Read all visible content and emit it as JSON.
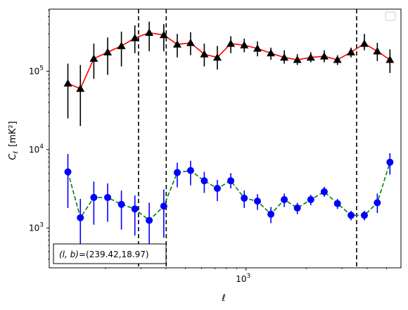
{
  "chart_data": {
    "type": "line",
    "title": "",
    "xlabel": "ℓ",
    "ylabel_main": "C",
    "ylabel_sub": "ℓ",
    "ylabel_unit": "[mK²]",
    "xscale": "log",
    "yscale": "log",
    "xlim": [
      105,
      5900
    ],
    "ylim": [
      310,
      620000
    ],
    "x_ticks": [
      {
        "value": 1000,
        "base": "10",
        "exp": "3"
      }
    ],
    "y_ticks": [
      {
        "value": 1000,
        "base": "10",
        "exp": "3"
      },
      {
        "value": 10000,
        "base": "10",
        "exp": "4"
      },
      {
        "value": 100000,
        "base": "10",
        "exp": "5"
      }
    ],
    "vlines": [
      292,
      401,
      3550
    ],
    "annotation_prefix": "(l, b)",
    "annotation_value": "=(239.42,18.97)",
    "legend": {
      "location": "upper right",
      "entries": []
    },
    "series": [
      {
        "color": "#ff0000",
        "linestyle": "solid",
        "marker": "triangle",
        "marker_color": "#000000",
        "errorbar_color": "#000000",
        "x": [
          130,
          150,
          175,
          205,
          240,
          280,
          330,
          390,
          455,
          530,
          620,
          720,
          840,
          980,
          1140,
          1330,
          1550,
          1800,
          2100,
          2450,
          2850,
          3330,
          3880,
          4500,
          5200
        ],
        "y": [
          70000,
          60000,
          145000,
          175000,
          210000,
          265000,
          310000,
          290000,
          220000,
          230000,
          165000,
          150000,
          225000,
          215000,
          195000,
          170000,
          150000,
          140000,
          150000,
          155000,
          140000,
          175000,
          225000,
          180000,
          140000
        ],
        "err_low": [
          45000,
          40000,
          65000,
          85000,
          95000,
          95000,
          130000,
          110000,
          70000,
          70000,
          50000,
          45000,
          55000,
          40000,
          40000,
          30000,
          25000,
          20000,
          20000,
          25000,
          20000,
          25000,
          40000,
          45000,
          45000
        ],
        "err_high": [
          55000,
          60000,
          80000,
          95000,
          110000,
          120000,
          120000,
          110000,
          80000,
          85000,
          60000,
          60000,
          55000,
          45000,
          45000,
          30000,
          35000,
          25000,
          25000,
          30000,
          20000,
          25000,
          75000,
          50000,
          50000
        ]
      },
      {
        "color": "#008000",
        "linestyle": "dashed",
        "marker": "circle",
        "marker_color": "#0000ff",
        "errorbar_color": "#0000ff",
        "x": [
          130,
          150,
          175,
          205,
          240,
          280,
          330,
          390,
          455,
          530,
          620,
          720,
          840,
          980,
          1140,
          1330,
          1550,
          1800,
          2100,
          2450,
          2850,
          3330,
          3880,
          4500,
          5200
        ],
        "y": [
          5200,
          1350,
          2450,
          2450,
          2000,
          1750,
          1250,
          1900,
          5100,
          5400,
          4000,
          3200,
          4000,
          2400,
          2200,
          1500,
          2300,
          1800,
          2300,
          2900,
          2050,
          1450,
          1450,
          2100,
          6900
        ],
        "err_low": [
          3400,
          1000,
          1350,
          1250,
          1050,
          950,
          700,
          1150,
          1800,
          1900,
          1200,
          1000,
          800,
          600,
          500,
          350,
          450,
          300,
          350,
          400,
          300,
          200,
          200,
          550,
          2100
        ],
        "err_high": [
          3600,
          1000,
          1450,
          1250,
          1000,
          850,
          850,
          1200,
          1700,
          1800,
          1200,
          900,
          1000,
          600,
          500,
          350,
          450,
          300,
          350,
          450,
          300,
          200,
          200,
          650,
          2100
        ]
      }
    ]
  }
}
